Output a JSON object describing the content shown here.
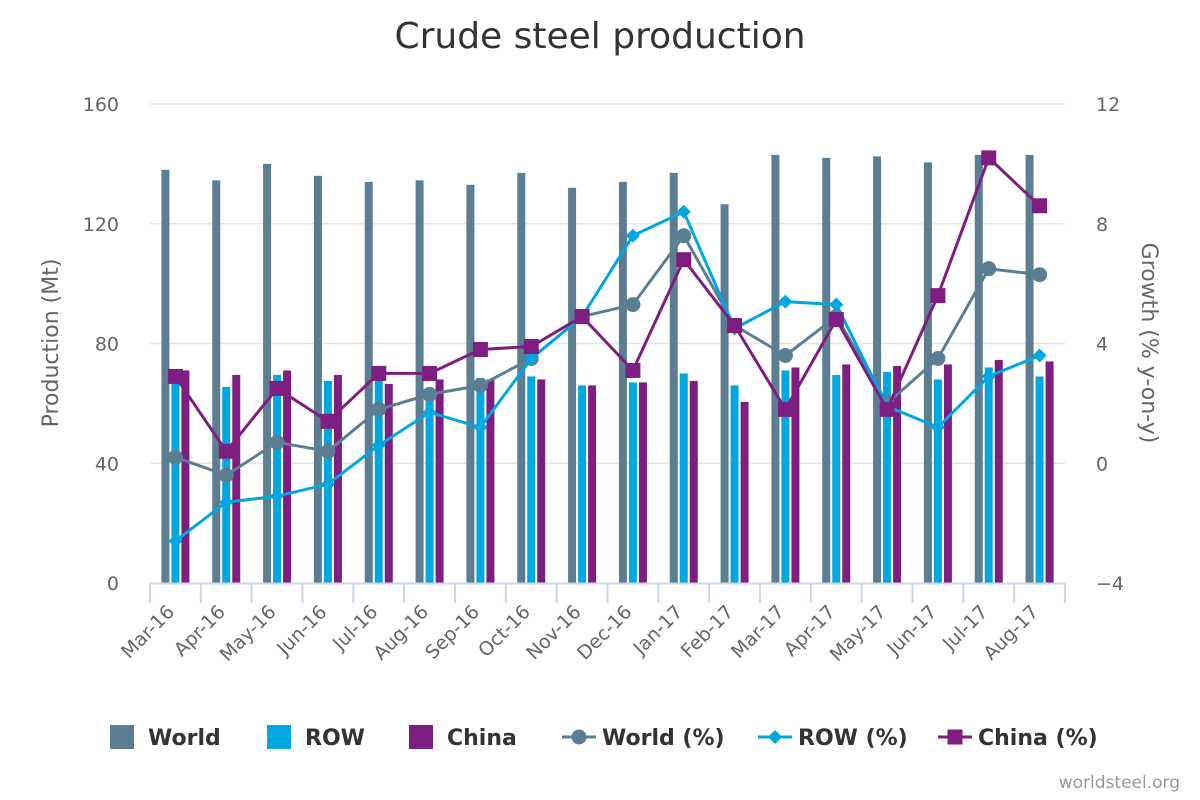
{
  "chart_data": {
    "type": "bar",
    "title": "Crude steel production",
    "categories": [
      "Mar-16",
      "Apr-16",
      "May-16",
      "Jun-16",
      "Jul-16",
      "Aug-16",
      "Sep-16",
      "Oct-16",
      "Nov-16",
      "Dec-16",
      "Jan-17",
      "Feb-17",
      "Mar-17",
      "Apr-17",
      "May-17",
      "Jun-17",
      "Jul-17",
      "Aug-17"
    ],
    "ylabel": "Production (Mt)",
    "ylim": [
      0,
      160
    ],
    "yticks": [
      "0",
      "40",
      "80",
      "120",
      "160"
    ],
    "y2label": "Growth (% y-on-y)",
    "y2lim": [
      -4,
      12
    ],
    "y2ticks": [
      "−4",
      "0",
      "4",
      "8",
      "12"
    ],
    "series": [
      {
        "name": "World",
        "type": "bar",
        "axis": "left",
        "color": "#5c7e93",
        "values": [
          138,
          134.5,
          140,
          136,
          134,
          134.5,
          133,
          137,
          132,
          134,
          137,
          126.5,
          143,
          142,
          142.5,
          140.5,
          143,
          143
        ]
      },
      {
        "name": "ROW",
        "type": "bar",
        "axis": "left",
        "color": "#00a7e1",
        "values": [
          67,
          65.5,
          69.5,
          67.5,
          68,
          65,
          68.5,
          69,
          66,
          67,
          70,
          66,
          71,
          69.5,
          70.5,
          68,
          72,
          69
        ]
      },
      {
        "name": "China",
        "type": "bar",
        "axis": "left",
        "color": "#7e1e80",
        "values": [
          71,
          69.5,
          71,
          69.5,
          66.5,
          68,
          68,
          68,
          66,
          67,
          67.5,
          60.5,
          72,
          73,
          72.5,
          73,
          74.5,
          74
        ]
      },
      {
        "name": "World (%)",
        "type": "line",
        "axis": "right",
        "marker": "circle",
        "color": "#5c7e93",
        "values": [
          0.2,
          -0.4,
          0.7,
          0.4,
          1.8,
          2.3,
          2.6,
          3.5,
          4.9,
          5.3,
          7.6,
          4.6,
          3.6,
          4.9,
          2.0,
          3.5,
          6.5,
          6.3
        ]
      },
      {
        "name": "ROW (%)",
        "type": "line",
        "axis": "right",
        "marker": "diamond",
        "color": "#00a7e1",
        "values": [
          -2.6,
          -1.3,
          -1.1,
          -0.7,
          0.6,
          1.7,
          1.2,
          3.5,
          4.9,
          7.6,
          8.4,
          4.5,
          5.4,
          5.3,
          1.9,
          1.2,
          2.9,
          3.6
        ]
      },
      {
        "name": "China (%)",
        "type": "line",
        "axis": "right",
        "marker": "square",
        "color": "#7e1e80",
        "values": [
          2.9,
          0.4,
          2.5,
          1.4,
          3.0,
          3.0,
          3.8,
          3.9,
          4.9,
          3.1,
          6.8,
          4.6,
          1.8,
          4.8,
          1.8,
          5.6,
          10.2,
          8.6
        ]
      }
    ],
    "grid": true,
    "legend": "bottom",
    "credit": "worldsteel.org"
  }
}
